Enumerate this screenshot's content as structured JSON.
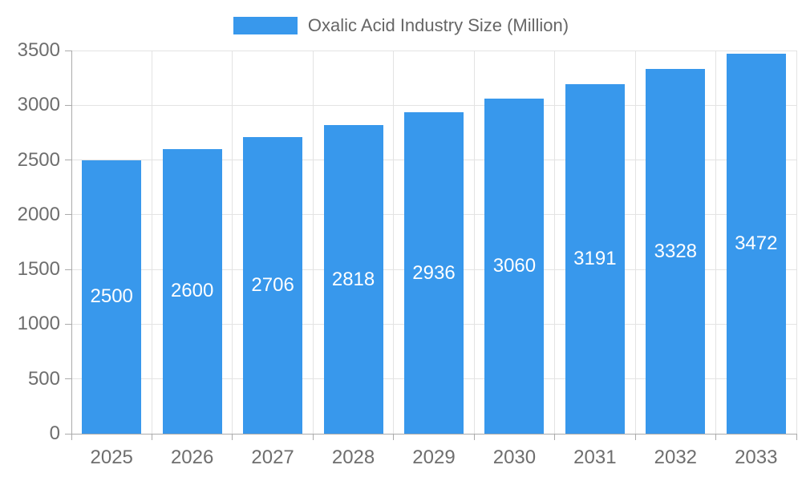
{
  "legend": {
    "label": "Oxalic Acid Industry Size (Million)",
    "swatch_color": "#3898EC"
  },
  "chart_data": {
    "type": "bar",
    "title": "Oxalic Acid Industry Size (Million)",
    "categories": [
      "2025",
      "2026",
      "2027",
      "2028",
      "2029",
      "2030",
      "2031",
      "2032",
      "2033"
    ],
    "values": [
      2500,
      2600,
      2706,
      2818,
      2936,
      3060,
      3191,
      3328,
      3472
    ],
    "value_labels": [
      "2500",
      "2600",
      "2706",
      "2818",
      "2936",
      "3060",
      "3191",
      "3328",
      "3472"
    ],
    "xlabel": "",
    "ylabel": "",
    "ylim": [
      0,
      3500
    ],
    "yticks": [
      0,
      500,
      1000,
      1500,
      2000,
      2500,
      3000,
      3500
    ],
    "ytick_labels": [
      "0",
      "500",
      "1000",
      "1500",
      "2000",
      "2500",
      "3000",
      "3500"
    ],
    "grid": true,
    "legend_position": "top-center",
    "bar_color": "#3898EC",
    "value_label_color": "#FFFFFF",
    "grid_color": "#E3E3E3",
    "axis_color": "#ABABAB",
    "tick_label_color": "#6E6E6E"
  }
}
